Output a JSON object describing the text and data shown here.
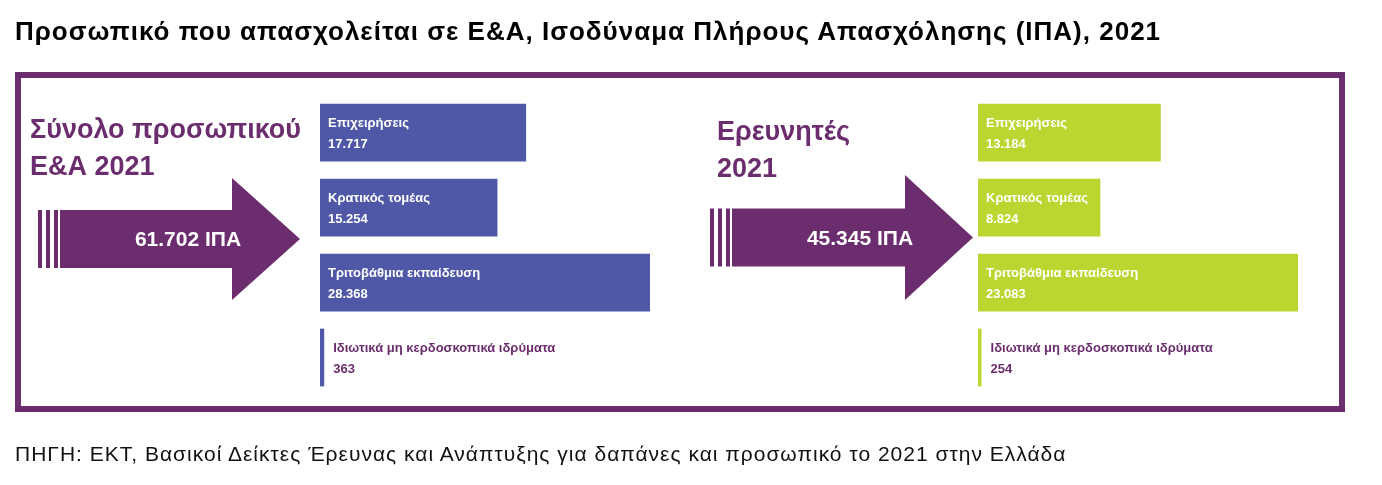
{
  "chart_data": [
    {
      "type": "bar",
      "orientation": "horizontal",
      "title": "Προσωπικό που απασχολείται σε Ε&Α, Ισοδύναμα Πλήρους Απασχόλησης (ΙΠΑ), 2021",
      "subtitle": "Σύνολο προσωπικού Ε&Α 2021",
      "categories": [
        "Επιχειρήσεις",
        "Κρατικός τομέας",
        "Τριτοβάθμια εκπαίδευση",
        "Ιδιωτικά μη κερδοσκοπικά ιδρύματα"
      ],
      "values": [
        17717,
        15254,
        28368,
        363
      ],
      "value_labels": [
        "17.717",
        "15.254",
        "28.368",
        "363"
      ],
      "color": "#4f58a7",
      "annotations": [
        "61.702 ΙΠΑ"
      ]
    },
    {
      "type": "bar",
      "orientation": "horizontal",
      "subtitle": "Ερευνητές 2021",
      "categories": [
        "Επιχειρήσεις",
        "Κρατικός τομέας",
        "Τριτοβάθμια εκπαίδευση",
        "Ιδιωτικά μη κερδοσκοπικά ιδρύματα"
      ],
      "values": [
        13184,
        8824,
        23083,
        254
      ],
      "value_labels": [
        "13.184",
        "8.824",
        "23.083",
        "254"
      ],
      "color": "#bcd631",
      "annotations": [
        "45.345 ΙΠΑ",
        "ΠΗΓΗ: ΕΚΤ, Βασικοί Δείκτες Έρευνας και Ανάπτυξης για δαπάνες και προσωπικό το 2021 στην Ελλάδα"
      ]
    }
  ]
}
